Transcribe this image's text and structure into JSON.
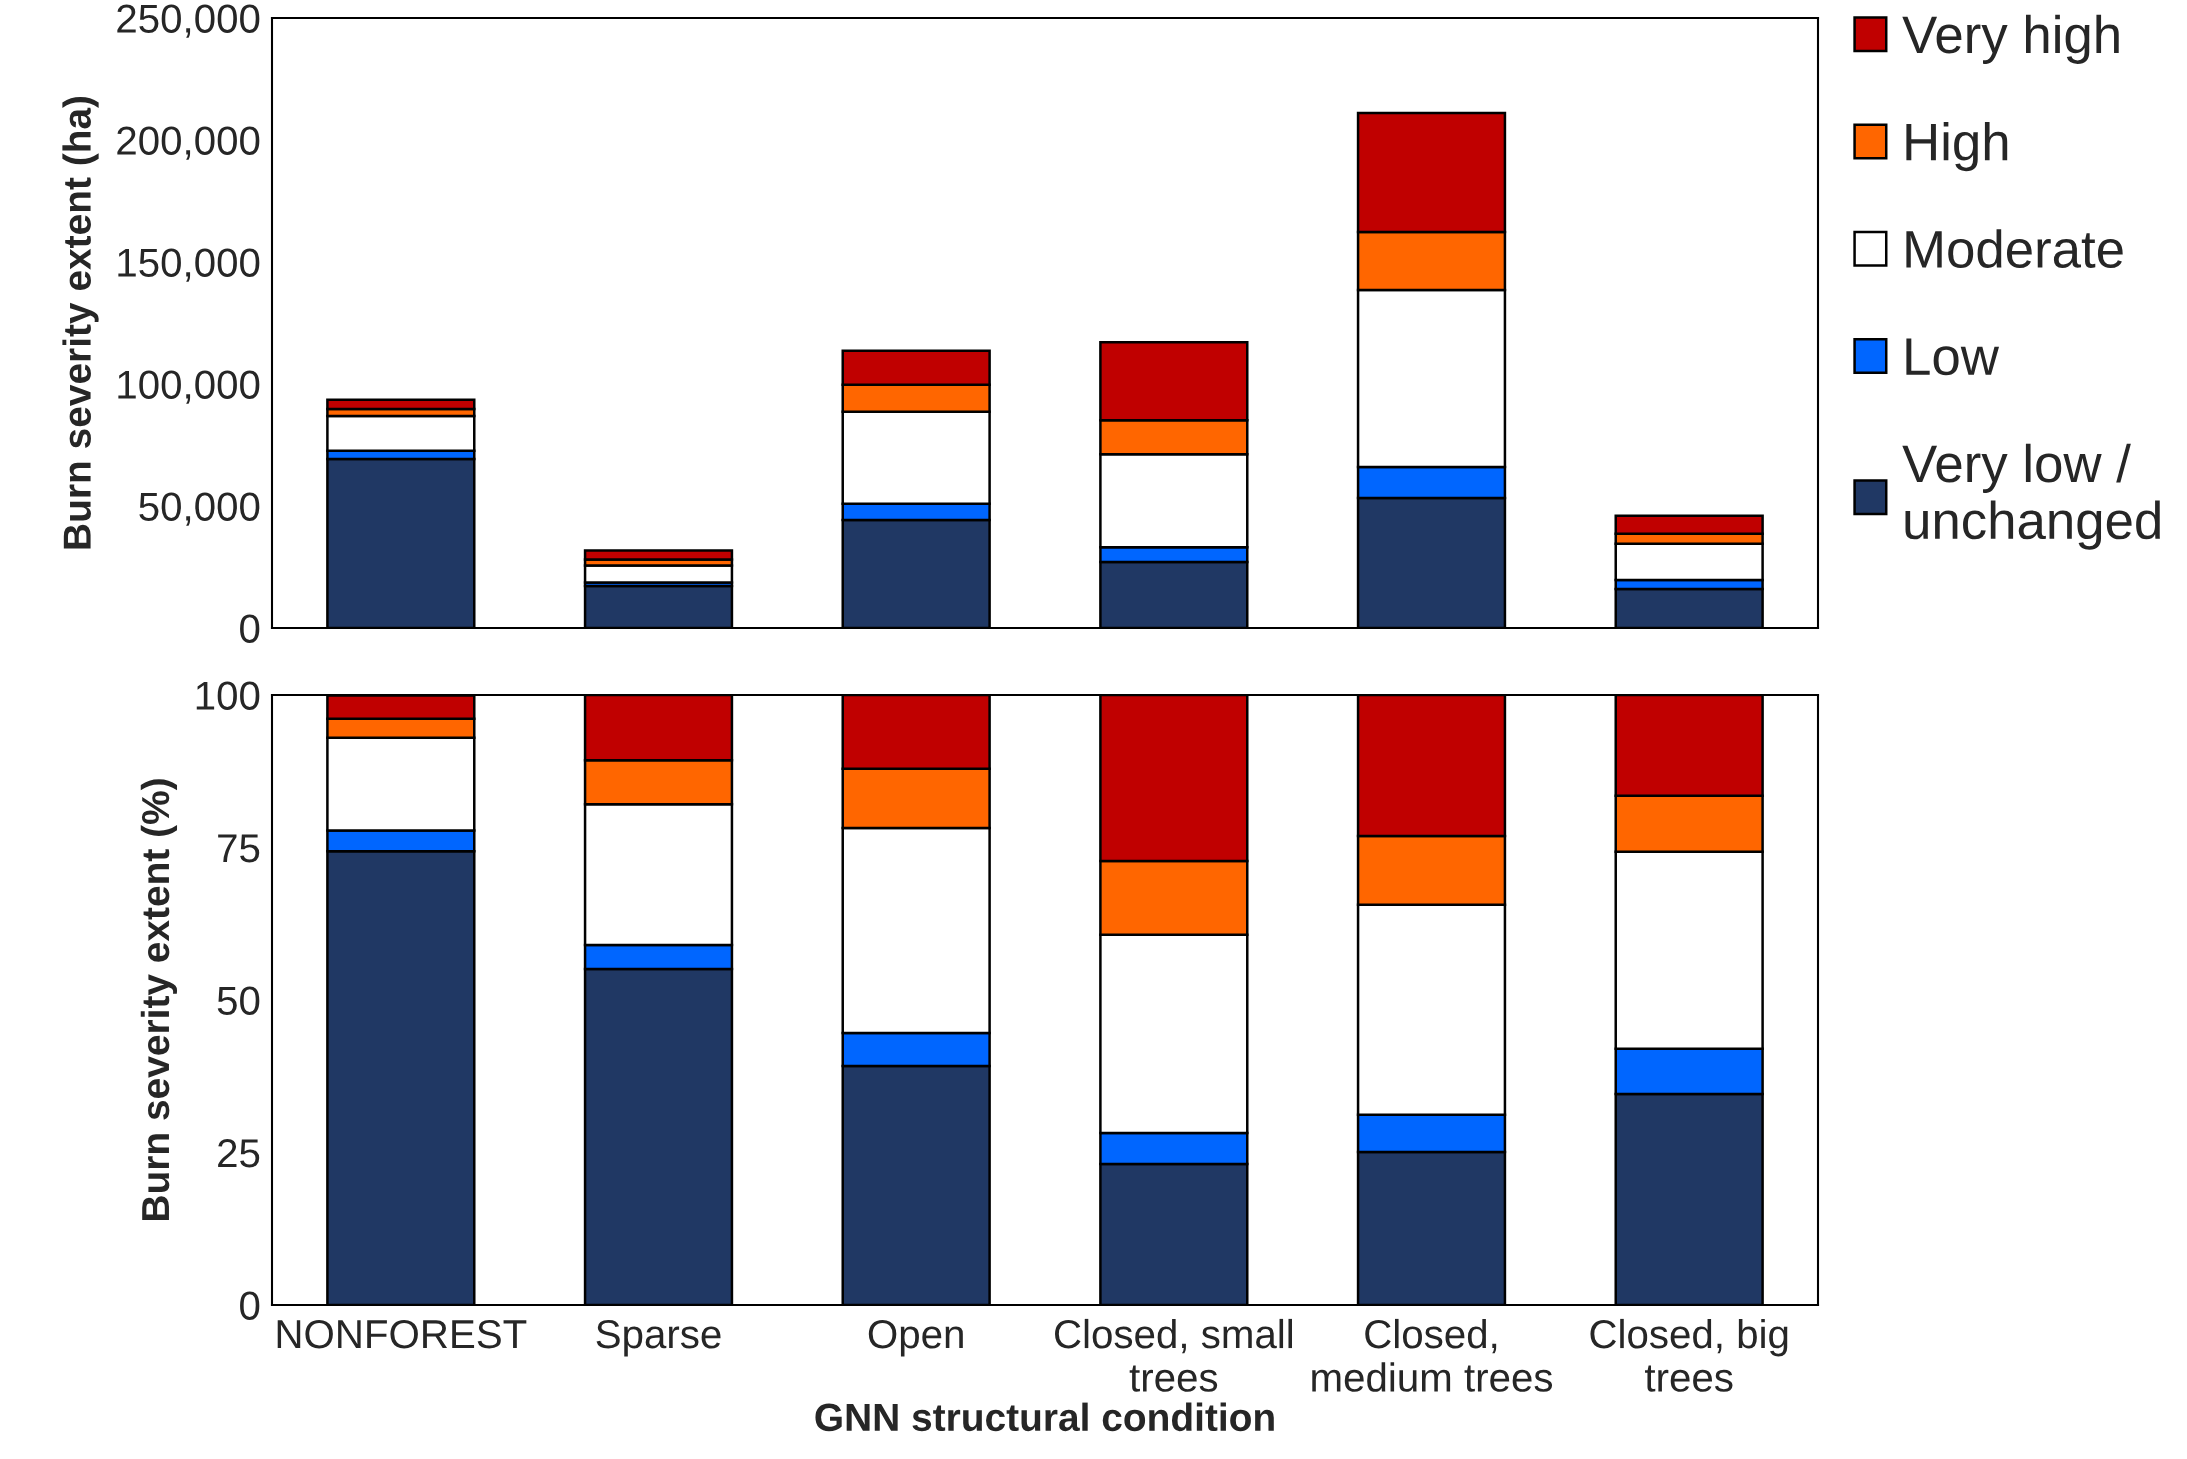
{
  "chart_data": [
    {
      "type": "bar",
      "stacked": true,
      "ylabel": "Burn severity extent (ha)",
      "categories": [
        null,
        null,
        null,
        null,
        null,
        null
      ],
      "ylim": [
        0,
        250000
      ],
      "yticks": [
        {
          "value": 0,
          "label": "0"
        },
        {
          "value": 50000,
          "label": "50,000"
        },
        {
          "value": 100000,
          "label": "100,000"
        },
        {
          "value": 150000,
          "label": "150,000"
        },
        {
          "value": 200000,
          "label": "200,000"
        },
        {
          "value": 250000,
          "label": "250,000"
        }
      ],
      "grid": false,
      "legend": "right",
      "series": [
        {
          "name": "Very low / unchanged",
          "color": "#203864",
          "values": [
            69300,
            17200,
            44300,
            27000,
            53300,
            16000
          ]
        },
        {
          "name": "Low",
          "color": "#0066ff",
          "values": [
            3300,
            1400,
            6600,
            6100,
            12700,
            3700
          ]
        },
        {
          "name": "Moderate",
          "color": "#ffffff",
          "values": [
            14300,
            7000,
            37700,
            38100,
            72500,
            14800
          ]
        },
        {
          "name": "High",
          "color": "#ff6600",
          "values": [
            2900,
            2500,
            11100,
            13900,
            23800,
            4100
          ]
        },
        {
          "name": "Very high",
          "color": "#c00000",
          "values": [
            3700,
            3700,
            13900,
            32000,
            48800,
            7400
          ]
        }
      ]
    },
    {
      "type": "bar",
      "stacked": true,
      "ylabel": "Burn severity extent (%)",
      "xlabel": "GNN structural condition",
      "categories": [
        "NONFOREST",
        "Sparse",
        "Open",
        "Closed, small trees",
        "Closed, medium trees",
        "Closed, big trees"
      ],
      "ylim": [
        0,
        100
      ],
      "yticks": [
        0,
        25,
        50,
        75,
        100
      ],
      "grid": false,
      "series": [
        {
          "color": "#203864",
          "values": [
            74.4,
            55.1,
            39.2,
            23.1,
            25.1,
            34.6
          ]
        },
        {
          "color": "#0066ff",
          "values": [
            3.4,
            3.9,
            5.4,
            5.1,
            6.1,
            7.4
          ]
        },
        {
          "color": "#ffffff",
          "values": [
            15.2,
            23.1,
            33.6,
            32.5,
            34.4,
            32.3
          ]
        },
        {
          "color": "#ff6600",
          "values": [
            3.1,
            7.2,
            9.7,
            12.1,
            11.3,
            9.2
          ]
        },
        {
          "color": "#c00000",
          "values": [
            3.8,
            10.7,
            12.1,
            27.2,
            23.1,
            16.5
          ]
        }
      ]
    }
  ]
}
